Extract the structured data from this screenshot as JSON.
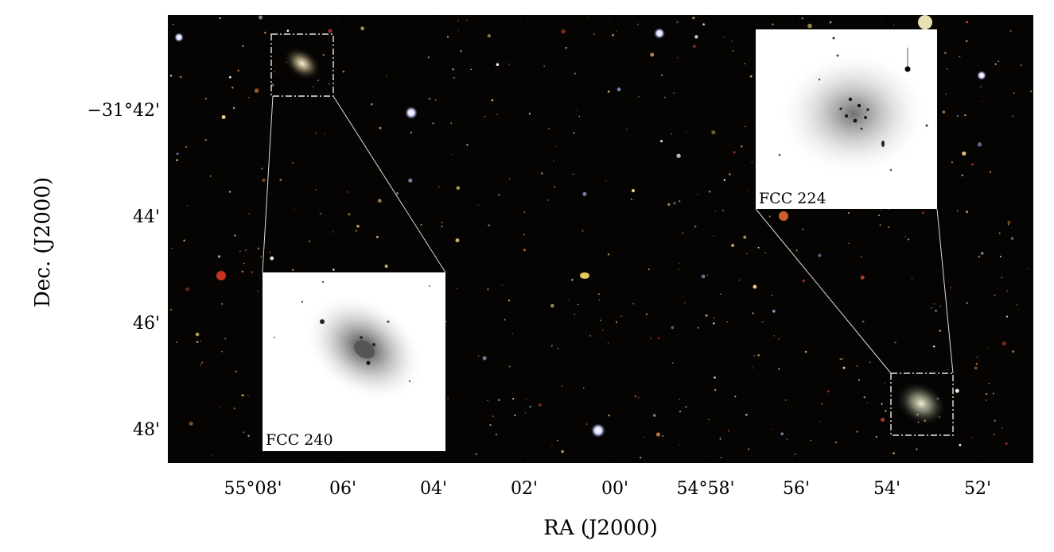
{
  "x_axis": {
    "label": "RA (J2000)",
    "ticks": [
      "55°08'",
      "06'",
      "04'",
      "02'",
      "00'",
      "54°58'",
      "56'",
      "54'",
      "52'"
    ]
  },
  "y_axis": {
    "label": "Dec. (J2000)",
    "ticks": [
      "−31°42'",
      "44'",
      "46'",
      "48'"
    ]
  },
  "insets": [
    {
      "label": "FCC 240"
    },
    {
      "label": "FCC 224"
    }
  ]
}
